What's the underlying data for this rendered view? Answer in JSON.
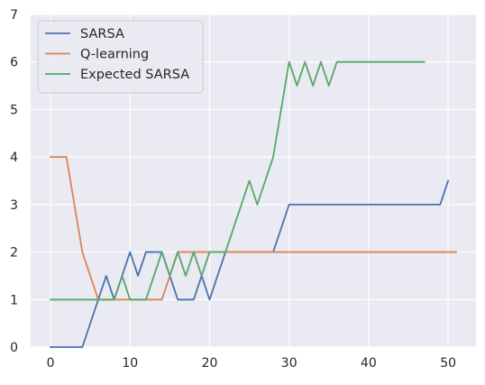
{
  "chart_data": {
    "type": "line",
    "title": "",
    "xlabel": "",
    "ylabel": "",
    "xlim": [
      -2.5,
      53.5
    ],
    "ylim": [
      0,
      7
    ],
    "grid": true,
    "plot_background": "#eaeaf2",
    "grid_color": "#ffffff",
    "legend_position": "top-left",
    "x_ticks": [
      0,
      10,
      20,
      30,
      40,
      50
    ],
    "y_ticks": [
      0,
      1,
      2,
      3,
      4,
      5,
      6,
      7
    ],
    "x_tick_labels": [
      "0",
      "10",
      "20",
      "30",
      "40",
      "50"
    ],
    "y_tick_labels": [
      "0",
      "1",
      "2",
      "3",
      "4",
      "5",
      "6",
      "7"
    ],
    "series": [
      {
        "name": "SARSA",
        "color": "#4c72b0",
        "points": [
          [
            0,
            0
          ],
          [
            1,
            0
          ],
          [
            2,
            0
          ],
          [
            3,
            0
          ],
          [
            4,
            0
          ],
          [
            5,
            0.5
          ],
          [
            6,
            1
          ],
          [
            7,
            1.5
          ],
          [
            8,
            1
          ],
          [
            9,
            1.5
          ],
          [
            10,
            2
          ],
          [
            11,
            1.5
          ],
          [
            12,
            2
          ],
          [
            13,
            2
          ],
          [
            14,
            2
          ],
          [
            15,
            1.5
          ],
          [
            16,
            1
          ],
          [
            17,
            1
          ],
          [
            18,
            1
          ],
          [
            19,
            1.5
          ],
          [
            20,
            1
          ],
          [
            21,
            1.5
          ],
          [
            22,
            2
          ],
          [
            23,
            2
          ],
          [
            24,
            2
          ],
          [
            25,
            2
          ],
          [
            26,
            2
          ],
          [
            27,
            2
          ],
          [
            28,
            2
          ],
          [
            29,
            2.5
          ],
          [
            30,
            3
          ],
          [
            31,
            3
          ],
          [
            32,
            3
          ],
          [
            33,
            3
          ],
          [
            34,
            3
          ],
          [
            35,
            3
          ],
          [
            36,
            3
          ],
          [
            37,
            3
          ],
          [
            38,
            3
          ],
          [
            39,
            3
          ],
          [
            40,
            3
          ],
          [
            41,
            3
          ],
          [
            42,
            3
          ],
          [
            43,
            3
          ],
          [
            44,
            3
          ],
          [
            45,
            3
          ],
          [
            46,
            3
          ],
          [
            47,
            3
          ],
          [
            48,
            3
          ],
          [
            49,
            3
          ],
          [
            50,
            3.5
          ]
        ]
      },
      {
        "name": "Q-learning",
        "color": "#dd8452",
        "points": [
          [
            0,
            4
          ],
          [
            1,
            4
          ],
          [
            2,
            4
          ],
          [
            3,
            3
          ],
          [
            4,
            2
          ],
          [
            5,
            1.5
          ],
          [
            6,
            1
          ],
          [
            7,
            1
          ],
          [
            8,
            1
          ],
          [
            9,
            1
          ],
          [
            10,
            1
          ],
          [
            11,
            1
          ],
          [
            12,
            1
          ],
          [
            13,
            1
          ],
          [
            14,
            1
          ],
          [
            15,
            1.5
          ],
          [
            16,
            2
          ],
          [
            17,
            2
          ],
          [
            18,
            2
          ],
          [
            19,
            2
          ],
          [
            20,
            2
          ],
          [
            21,
            2
          ],
          [
            22,
            2
          ],
          [
            23,
            2
          ],
          [
            24,
            2
          ],
          [
            25,
            2
          ],
          [
            26,
            2
          ],
          [
            27,
            2
          ],
          [
            28,
            2
          ],
          [
            29,
            2
          ],
          [
            30,
            2
          ],
          [
            31,
            2
          ],
          [
            32,
            2
          ],
          [
            33,
            2
          ],
          [
            34,
            2
          ],
          [
            35,
            2
          ],
          [
            36,
            2
          ],
          [
            37,
            2
          ],
          [
            38,
            2
          ],
          [
            39,
            2
          ],
          [
            40,
            2
          ],
          [
            41,
            2
          ],
          [
            42,
            2
          ],
          [
            43,
            2
          ],
          [
            44,
            2
          ],
          [
            45,
            2
          ],
          [
            46,
            2
          ],
          [
            47,
            2
          ],
          [
            48,
            2
          ],
          [
            49,
            2
          ],
          [
            50,
            2
          ],
          [
            51,
            2
          ]
        ]
      },
      {
        "name": "Expected SARSA",
        "color": "#55a868",
        "points": [
          [
            0,
            1
          ],
          [
            1,
            1
          ],
          [
            2,
            1
          ],
          [
            3,
            1
          ],
          [
            4,
            1
          ],
          [
            5,
            1
          ],
          [
            6,
            1
          ],
          [
            7,
            1
          ],
          [
            8,
            1
          ],
          [
            9,
            1.5
          ],
          [
            10,
            1
          ],
          [
            11,
            1
          ],
          [
            12,
            1
          ],
          [
            13,
            1.5
          ],
          [
            14,
            2
          ],
          [
            15,
            1.5
          ],
          [
            16,
            2
          ],
          [
            17,
            1.5
          ],
          [
            18,
            2
          ],
          [
            19,
            1.5
          ],
          [
            20,
            2
          ],
          [
            21,
            2
          ],
          [
            22,
            2
          ],
          [
            23,
            2.5
          ],
          [
            24,
            3
          ],
          [
            25,
            3.5
          ],
          [
            26,
            3
          ],
          [
            27,
            3.5
          ],
          [
            28,
            4
          ],
          [
            29,
            5
          ],
          [
            30,
            6
          ],
          [
            31,
            5.5
          ],
          [
            32,
            6
          ],
          [
            33,
            5.5
          ],
          [
            34,
            6
          ],
          [
            35,
            5.5
          ],
          [
            36,
            6
          ],
          [
            37,
            6
          ],
          [
            38,
            6
          ],
          [
            39,
            6
          ],
          [
            40,
            6
          ],
          [
            41,
            6
          ],
          [
            42,
            6
          ],
          [
            43,
            6
          ],
          [
            44,
            6
          ],
          [
            45,
            6
          ],
          [
            46,
            6
          ],
          [
            47,
            6
          ]
        ]
      }
    ]
  }
}
